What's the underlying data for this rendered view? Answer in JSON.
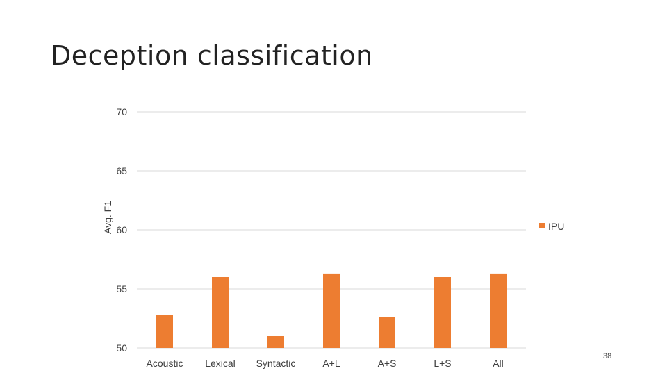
{
  "slide": {
    "title": "Deception classification",
    "page_number": "38"
  },
  "colors": {
    "bar": "#ED7D31",
    "grid": "#D9D9D9",
    "text": "#404040"
  },
  "chart_data": {
    "type": "bar",
    "title": "",
    "xlabel": "",
    "ylabel": "Avg. F1",
    "ylim": [
      50,
      70
    ],
    "yticks": [
      "50",
      "55",
      "60",
      "65",
      "70"
    ],
    "grid": true,
    "legend_position": "right",
    "categories": [
      "Acoustic",
      "Lexical",
      "Syntactic",
      "A+L",
      "A+S",
      "L+S",
      "All"
    ],
    "series": [
      {
        "name": "IPU",
        "values": [
          52.8,
          56.0,
          51.0,
          56.3,
          52.6,
          56.0,
          56.3
        ]
      }
    ]
  }
}
